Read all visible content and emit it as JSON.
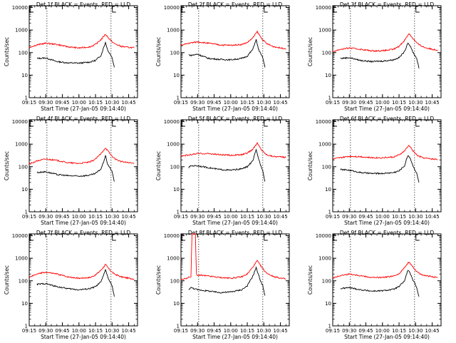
{
  "chart_data": [
    {
      "type": "line",
      "title": "Det 1f BLACK = Events, RED = LLD",
      "xlabel": "Start Time (27-Jan-05 09:14:40)",
      "ylabel": "Counts/sec",
      "x_ticks": [
        "09:15",
        "09:30",
        "09:45",
        "10:00",
        "10:15",
        "10:30",
        "10:45"
      ],
      "y_ticks": [
        "1",
        "10",
        "100",
        "1000",
        "10000"
      ],
      "yscale": "log",
      "ylim": [
        1,
        12000
      ],
      "grid": false,
      "series": [
        {
          "name": "Events",
          "color": "#000000",
          "x": [
            "09:22",
            "09:30",
            "09:40",
            "09:50",
            "10:00",
            "10:10",
            "10:15",
            "10:20",
            "10:22",
            "10:24",
            "10:26",
            "10:28",
            "10:30",
            "10:32"
          ],
          "values": [
            55,
            58,
            40,
            35,
            34,
            38,
            45,
            75,
            150,
            280,
            130,
            90,
            60,
            22
          ]
        },
        {
          "name": "LLD",
          "color": "#ff0000",
          "x": [
            "09:15",
            "09:22",
            "09:30",
            "09:40",
            "09:50",
            "10:00",
            "10:10",
            "10:15",
            "10:20",
            "10:24",
            "10:28",
            "10:32",
            "10:38",
            "10:45",
            "10:50"
          ],
          "values": [
            170,
            220,
            260,
            230,
            180,
            160,
            180,
            230,
            380,
            650,
            380,
            250,
            190,
            170,
            165
          ]
        }
      ]
    },
    {
      "type": "line",
      "title": "Det 2f BLACK = Events, RED = LLD",
      "xlabel": "Start Time (27-Jan-05 09:14:40)",
      "ylabel": "Counts/sec",
      "x_ticks": [
        "09:15",
        "09:30",
        "09:45",
        "10:00",
        "10:15",
        "10:30",
        "10:45"
      ],
      "y_ticks": [
        "1",
        "10",
        "100",
        "1000",
        "10000"
      ],
      "yscale": "log",
      "ylim": [
        1,
        12000
      ],
      "grid": false,
      "series": [
        {
          "name": "Events",
          "color": "#000000",
          "x": [
            "09:22",
            "09:24",
            "09:30",
            "09:40",
            "09:50",
            "10:00",
            "10:10",
            "10:15",
            "10:20",
            "10:23",
            "10:25",
            "10:27",
            "10:29",
            "10:31"
          ],
          "values": [
            80,
            75,
            85,
            55,
            50,
            48,
            55,
            70,
            140,
            380,
            150,
            90,
            60,
            22
          ]
        },
        {
          "name": "LLD",
          "color": "#ff0000",
          "x": [
            "09:15",
            "09:22",
            "09:30",
            "09:40",
            "09:50",
            "10:00",
            "10:10",
            "10:15",
            "10:20",
            "10:24",
            "10:28",
            "10:32",
            "10:38",
            "10:45",
            "10:50"
          ],
          "values": [
            210,
            260,
            300,
            260,
            220,
            210,
            230,
            280,
            450,
            850,
            420,
            260,
            190,
            160,
            150
          ]
        }
      ]
    },
    {
      "type": "line",
      "title": "Det 3f BLACK = Events, RED = LLD",
      "xlabel": "Start Time (27-Jan-05 09:14:40)",
      "ylabel": "Counts/sec",
      "x_ticks": [
        "09:15",
        "09:30",
        "09:45",
        "10:00",
        "10:15",
        "10:30",
        "10:45"
      ],
      "y_ticks": [
        "1",
        "10",
        "100",
        "1000",
        "10000"
      ],
      "yscale": "log",
      "ylim": [
        1,
        12000
      ],
      "grid": false,
      "series": [
        {
          "name": "Events",
          "color": "#000000",
          "x": [
            "09:22",
            "09:30",
            "09:40",
            "09:50",
            "10:00",
            "10:10",
            "10:15",
            "10:20",
            "10:23",
            "10:25",
            "10:27",
            "10:29",
            "10:31",
            "10:33"
          ],
          "values": [
            55,
            60,
            45,
            40,
            42,
            48,
            60,
            110,
            280,
            200,
            120,
            80,
            55,
            20
          ]
        },
        {
          "name": "LLD",
          "color": "#ff0000",
          "x": [
            "09:15",
            "09:22",
            "09:30",
            "09:40",
            "09:50",
            "10:00",
            "10:10",
            "10:15",
            "10:20",
            "10:24",
            "10:28",
            "10:32",
            "10:38",
            "10:45",
            "10:50"
          ],
          "values": [
            110,
            140,
            160,
            140,
            120,
            120,
            140,
            190,
            350,
            700,
            400,
            240,
            170,
            140,
            130
          ]
        }
      ]
    },
    {
      "type": "line",
      "title": "Det 4f BLACK = Events, RED = LLD",
      "xlabel": "Start Time (27-Jan-05 09:14:40)",
      "ylabel": "Counts/sec",
      "x_ticks": [
        "09:15",
        "09:30",
        "09:45",
        "10:00",
        "10:15",
        "10:30",
        "10:45"
      ],
      "y_ticks": [
        "1",
        "10",
        "100",
        "1000",
        "10000"
      ],
      "yscale": "log",
      "ylim": [
        1,
        12000
      ],
      "grid": false,
      "series": [
        {
          "name": "Events",
          "color": "#000000",
          "x": [
            "09:22",
            "09:30",
            "09:40",
            "09:50",
            "10:00",
            "10:10",
            "10:15",
            "10:20",
            "10:22",
            "10:24",
            "10:26",
            "10:28",
            "10:30",
            "10:32"
          ],
          "values": [
            55,
            60,
            45,
            40,
            38,
            42,
            50,
            80,
            150,
            300,
            130,
            90,
            60,
            22
          ]
        },
        {
          "name": "LLD",
          "color": "#ff0000",
          "x": [
            "09:15",
            "09:22",
            "09:30",
            "09:40",
            "09:50",
            "10:00",
            "10:10",
            "10:15",
            "10:20",
            "10:24",
            "10:28",
            "10:32",
            "10:38",
            "10:45",
            "10:50"
          ],
          "values": [
            130,
            180,
            220,
            190,
            150,
            140,
            160,
            220,
            380,
            700,
            380,
            230,
            170,
            150,
            140
          ]
        }
      ]
    },
    {
      "type": "line",
      "title": "Det 5f BLACK = Events, RED = LLD",
      "xlabel": "Start Time (27-Jan-05 09:14:40)",
      "ylabel": "Counts/sec",
      "x_ticks": [
        "09:15",
        "09:30",
        "09:45",
        "10:00",
        "10:15",
        "10:30",
        "10:45"
      ],
      "y_ticks": [
        "1",
        "10",
        "100",
        "1000",
        "10000"
      ],
      "yscale": "log",
      "ylim": [
        1,
        12000
      ],
      "grid": false,
      "series": [
        {
          "name": "Events",
          "color": "#000000",
          "x": [
            "09:22",
            "09:24",
            "09:30",
            "09:40",
            "09:50",
            "10:00",
            "10:10",
            "10:15",
            "10:20",
            "10:23",
            "10:25",
            "10:27",
            "10:29",
            "10:31"
          ],
          "values": [
            90,
            110,
            110,
            90,
            75,
            70,
            80,
            100,
            180,
            550,
            250,
            120,
            70,
            22
          ]
        },
        {
          "name": "LLD",
          "color": "#ff0000",
          "x": [
            "09:15",
            "09:22",
            "09:30",
            "09:40",
            "09:50",
            "10:00",
            "10:10",
            "10:15",
            "10:20",
            "10:24",
            "10:28",
            "10:32",
            "10:38",
            "10:45",
            "10:50"
          ],
          "values": [
            300,
            330,
            380,
            380,
            340,
            320,
            340,
            400,
            600,
            1100,
            550,
            350,
            290,
            270,
            260
          ]
        }
      ]
    },
    {
      "type": "line",
      "title": "Det 6f BLACK = Events, RED = LLD",
      "xlabel": "Start Time (27-Jan-05 09:14:40)",
      "ylabel": "Counts/sec",
      "x_ticks": [
        "09:15",
        "09:30",
        "09:45",
        "10:00",
        "10:15",
        "10:30",
        "10:45"
      ],
      "y_ticks": [
        "1",
        "10",
        "100",
        "1000",
        "10000"
      ],
      "yscale": "log",
      "ylim": [
        1,
        12000
      ],
      "grid": false,
      "series": [
        {
          "name": "Events",
          "color": "#000000",
          "x": [
            "09:22",
            "09:30",
            "09:40",
            "09:50",
            "10:00",
            "10:10",
            "10:15",
            "10:20",
            "10:23",
            "10:25",
            "10:27",
            "10:29",
            "10:31",
            "10:33"
          ],
          "values": [
            75,
            70,
            55,
            50,
            50,
            55,
            65,
            110,
            320,
            250,
            130,
            80,
            50,
            20
          ]
        },
        {
          "name": "LLD",
          "color": "#ff0000",
          "x": [
            "09:15",
            "09:22",
            "09:30",
            "09:40",
            "09:50",
            "10:00",
            "10:10",
            "10:15",
            "10:20",
            "10:24",
            "10:28",
            "10:32",
            "10:38",
            "10:45",
            "10:50"
          ],
          "values": [
            220,
            250,
            290,
            280,
            250,
            250,
            270,
            330,
            500,
            900,
            480,
            300,
            240,
            220,
            210
          ]
        }
      ]
    },
    {
      "type": "line",
      "title": "Det 7f BLACK = Events, RED = LLD",
      "xlabel": "Start Time (27-Jan-05 09:14:40)",
      "ylabel": "Counts/sec",
      "x_ticks": [
        "09:15",
        "09:30",
        "09:45",
        "10:00",
        "10:15",
        "10:30",
        "10:45"
      ],
      "y_ticks": [
        "1",
        "10",
        "100",
        "1000",
        "10000"
      ],
      "yscale": "log",
      "ylim": [
        1,
        12000
      ],
      "grid": false,
      "series": [
        {
          "name": "Events",
          "color": "#000000",
          "x": [
            "09:22",
            "09:30",
            "09:40",
            "09:50",
            "10:00",
            "10:10",
            "10:15",
            "10:20",
            "10:22",
            "10:24",
            "10:26",
            "10:28",
            "10:30",
            "10:32"
          ],
          "values": [
            70,
            75,
            55,
            45,
            40,
            45,
            55,
            90,
            160,
            320,
            150,
            90,
            60,
            20
          ]
        },
        {
          "name": "LLD",
          "color": "#ff0000",
          "x": [
            "09:15",
            "09:22",
            "09:30",
            "09:40",
            "09:50",
            "10:00",
            "10:10",
            "10:15",
            "10:20",
            "10:24",
            "10:28",
            "10:32",
            "10:38",
            "10:45",
            "10:50"
          ],
          "values": [
            140,
            200,
            240,
            200,
            150,
            130,
            140,
            180,
            300,
            520,
            300,
            200,
            150,
            130,
            120
          ]
        }
      ]
    },
    {
      "type": "line",
      "title": "Det 8f BLACK = Events, RED = LLD",
      "xlabel": "Start Time (27-Jan-05 09:14:40)",
      "ylabel": "Counts/sec",
      "x_ticks": [
        "09:15",
        "09:30",
        "09:45",
        "10:00",
        "10:15",
        "10:30",
        "10:45"
      ],
      "y_ticks": [
        "1",
        "10",
        "100",
        "1000",
        "10000"
      ],
      "yscale": "log",
      "ylim": [
        1,
        12000
      ],
      "grid": false,
      "series": [
        {
          "name": "Events",
          "color": "#000000",
          "x": [
            "09:22",
            "09:24",
            "09:30",
            "09:40",
            "09:50",
            "10:00",
            "10:10",
            "10:15",
            "10:20",
            "10:23",
            "10:25",
            "10:27",
            "10:29",
            "10:31"
          ],
          "values": [
            42,
            50,
            40,
            35,
            30,
            32,
            40,
            60,
            160,
            380,
            200,
            100,
            60,
            22
          ]
        },
        {
          "name": "LLD",
          "color": "#ff0000",
          "x": [
            "09:15",
            "09:22",
            "09:24",
            "09:25",
            "09:27",
            "09:28",
            "09:29",
            "09:30",
            "09:31",
            "09:40",
            "09:50",
            "10:00",
            "10:10",
            "10:15",
            "10:20",
            "10:24",
            "10:28",
            "10:32",
            "10:38",
            "10:45",
            "10:50"
          ],
          "values": [
            110,
            140,
            150,
            12000,
            12000,
            12000,
            200,
            160,
            180,
            160,
            140,
            130,
            150,
            200,
            400,
            780,
            400,
            230,
            160,
            130,
            120
          ]
        }
      ]
    },
    {
      "type": "line",
      "title": "Det 9f BLACK = Events, RED = LLD",
      "xlabel": "Start Time (27-Jan-05 09:14:40)",
      "ylabel": "Counts/sec",
      "x_ticks": [
        "09:15",
        "09:30",
        "09:45",
        "10:00",
        "10:15",
        "10:30",
        "10:45"
      ],
      "y_ticks": [
        "1",
        "10",
        "100",
        "1000",
        "10000"
      ],
      "yscale": "log",
      "ylim": [
        1,
        12000
      ],
      "grid": false,
      "series": [
        {
          "name": "Events",
          "color": "#000000",
          "x": [
            "09:22",
            "09:30",
            "09:40",
            "09:50",
            "10:00",
            "10:10",
            "10:15",
            "10:20",
            "10:23",
            "10:25",
            "10:27",
            "10:29",
            "10:31",
            "10:33"
          ],
          "values": [
            45,
            50,
            40,
            35,
            36,
            42,
            55,
            100,
            300,
            220,
            120,
            80,
            50,
            20
          ]
        },
        {
          "name": "LLD",
          "color": "#ff0000",
          "x": [
            "09:15",
            "09:22",
            "09:30",
            "09:40",
            "09:50",
            "10:00",
            "10:10",
            "10:15",
            "10:20",
            "10:24",
            "10:28",
            "10:32",
            "10:38",
            "10:45",
            "10:50"
          ],
          "values": [
            130,
            170,
            200,
            170,
            140,
            140,
            160,
            210,
            380,
            700,
            380,
            230,
            170,
            150,
            140
          ]
        }
      ]
    }
  ]
}
